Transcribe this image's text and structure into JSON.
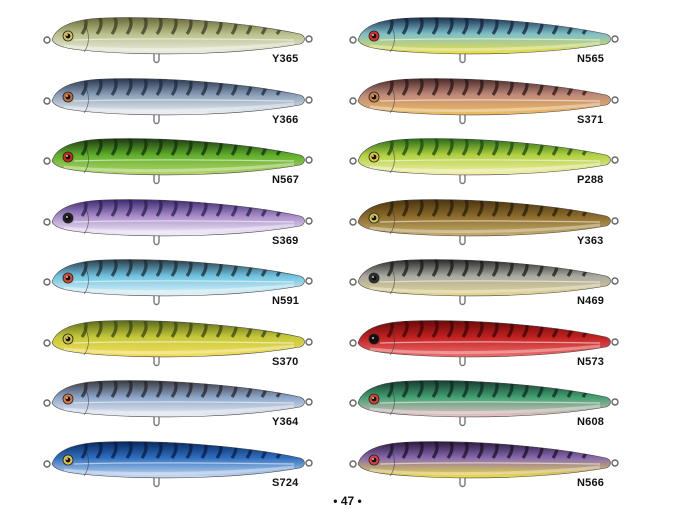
{
  "page_number": "• 47 •",
  "left_column": [
    {
      "code": "Y365",
      "top": "#6b6a3a",
      "mid": "#b9c08a",
      "belly": "#eef0e6",
      "stripe": "#3a3a22",
      "eye": "#d0c060"
    },
    {
      "code": "Y366",
      "top": "#2b3650",
      "mid": "#8aa0b8",
      "belly": "#f3f4f6",
      "stripe": "#1c2a3e",
      "eye": "#c46a3a"
    },
    {
      "code": "N567",
      "top": "#1b3a12",
      "mid": "#5fae2a",
      "belly": "#b8d870",
      "stripe": "#123008",
      "eye": "#cc2a1a"
    },
    {
      "code": "S369",
      "top": "#3b2a70",
      "mid": "#a88cc8",
      "belly": "#f6f3fb",
      "stripe": "#2a1f50",
      "eye": "#222222"
    },
    {
      "code": "N591",
      "top": "#2a3a48",
      "mid": "#6ec3e0",
      "belly": "#e8f4f8",
      "stripe": "#1e2a34",
      "eye": "#e04a2a"
    },
    {
      "code": "S370",
      "top": "#5a6a1a",
      "mid": "#c6c83a",
      "belly": "#f6e060",
      "stripe": "#3a4410",
      "eye": "#d0c040"
    },
    {
      "code": "Y364",
      "top": "#3a3a40",
      "mid": "#8aa4c8",
      "belly": "#f0f2f6",
      "stripe": "#24242a",
      "eye": "#e07a3a"
    },
    {
      "code": "S724",
      "top": "#0a2860",
      "mid": "#2f6fc0",
      "belly": "#cfe0f4",
      "stripe": "#081c44",
      "eye": "#e0c040"
    }
  ],
  "right_column": [
    {
      "code": "N565",
      "top": "#1a3050",
      "mid": "#7ec0c8",
      "belly": "#f2e040",
      "stripe": "#10203a",
      "eye": "#e02a2a"
    },
    {
      "code": "S371",
      "top": "#4a2a2a",
      "mid": "#c08a7a",
      "belly": "#f0c060",
      "stripe": "#2a1414",
      "eye": "#d08040"
    },
    {
      "code": "P288",
      "top": "#2a6a1a",
      "mid": "#b0d040",
      "belly": "#f6f0b0",
      "stripe": "#1a4a10",
      "eye": "#e0c030"
    },
    {
      "code": "Y363",
      "top": "#4a3410",
      "mid": "#8a6a2a",
      "belly": "#c8b070",
      "stripe": "#2a1e08",
      "eye": "#d0c050"
    },
    {
      "code": "N469",
      "top": "#2a2a2a",
      "mid": "#a8a8a0",
      "belly": "#e8d890",
      "stripe": "#181818",
      "eye": "#303030"
    },
    {
      "code": "N573",
      "top": "#6a0a0a",
      "mid": "#c02020",
      "belly": "#f07070",
      "stripe": "#3a0404",
      "eye": "#111111"
    },
    {
      "code": "N608",
      "top": "#1a3a30",
      "mid": "#40a070",
      "belly": "#f0c0c8",
      "stripe": "#0e2a20",
      "eye": "#e04030"
    },
    {
      "code": "N566",
      "top": "#2a1a40",
      "mid": "#8a6ab0",
      "belly": "#f0e040",
      "stripe": "#1a1028",
      "eye": "#e04040"
    }
  ]
}
